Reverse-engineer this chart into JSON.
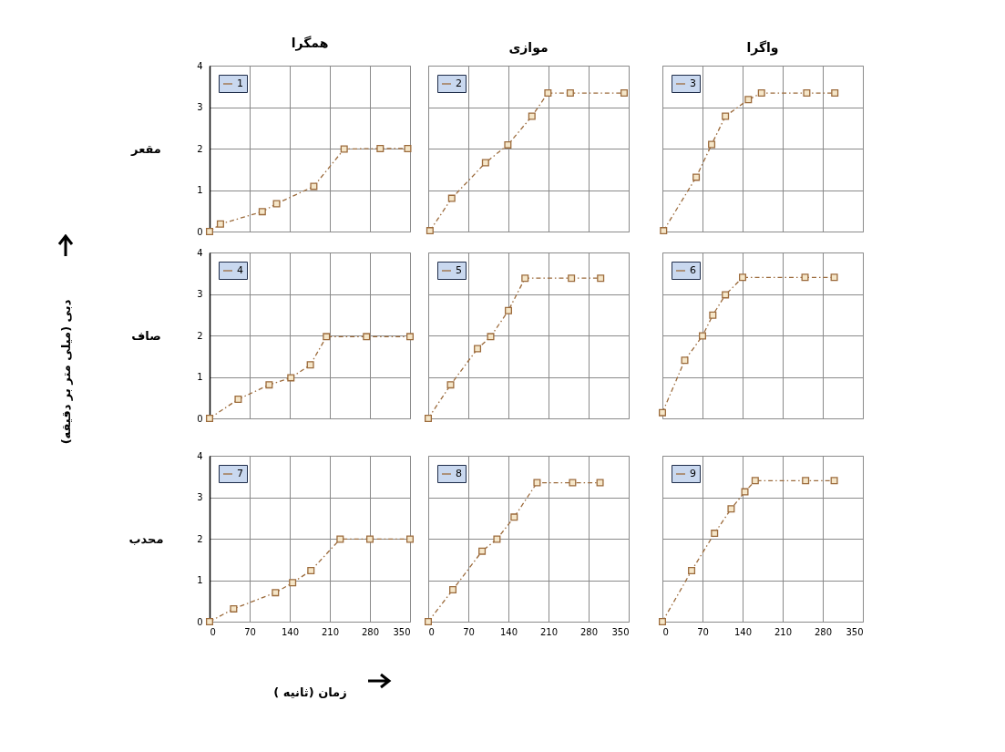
{
  "chart_data": [
    {
      "type": "line",
      "title": "همگرا",
      "ylabel": "مقعر",
      "x": [
        0,
        19,
        92,
        117,
        182,
        235,
        298,
        346
      ],
      "series": [
        {
          "name": "1",
          "color": "#9c6b3c",
          "values": [
            0,
            0.18,
            0.48,
            0.67,
            1.09,
            1.99,
            2,
            2
          ]
        }
      ],
      "xlim": [
        0,
        350
      ],
      "xticks": [
        0,
        70,
        140,
        210,
        280,
        350
      ],
      "ylim": [
        0,
        4
      ],
      "yticks": [
        0,
        1,
        2,
        3,
        4
      ],
      "grid": true,
      "legend": "top left",
      "marker": "square",
      "line_style": "dashed",
      "tick_labels": "y"
    },
    {
      "type": "line",
      "title": "موازی",
      "x": [
        3,
        41,
        100,
        139,
        181,
        209,
        248,
        342
      ],
      "series": [
        {
          "name": "2",
          "color": "#9c6b3c",
          "values": [
            0.02,
            0.8,
            1.66,
            2.09,
            2.78,
            3.34,
            3.34,
            3.34
          ]
        }
      ],
      "xlim": [
        0,
        350
      ],
      "xticks": [
        0,
        70,
        140,
        210,
        280,
        350
      ],
      "ylim": [
        0,
        4
      ],
      "yticks": [
        0,
        1,
        2,
        3,
        4
      ],
      "grid": true,
      "legend": "top left",
      "marker": "square",
      "line_style": "dashed",
      "tick_labels": false
    },
    {
      "type": "line",
      "title": "واگرا",
      "x": [
        2,
        59,
        86,
        110,
        150,
        173,
        252,
        301
      ],
      "series": [
        {
          "name": "3",
          "color": "#9c6b3c",
          "values": [
            0.02,
            1.31,
            2.1,
            2.78,
            3.18,
            3.34,
            3.34,
            3.34
          ]
        }
      ],
      "xlim": [
        0,
        350
      ],
      "xticks": [
        0,
        70,
        140,
        210,
        280,
        350
      ],
      "ylim": [
        0,
        4
      ],
      "yticks": [
        0,
        1,
        2,
        3,
        4
      ],
      "grid": true,
      "legend": "top left",
      "marker": "square",
      "line_style": "dashed",
      "tick_labels": false
    },
    {
      "type": "line",
      "ylabel": "صاف",
      "annotations": [
        "دبی (میلی متر بر دقیقه)"
      ],
      "x": [
        0,
        50,
        104,
        142,
        176,
        204,
        274,
        350
      ],
      "series": [
        {
          "name": "4",
          "color": "#9c6b3c",
          "values": [
            0,
            0.46,
            0.81,
            0.98,
            1.29,
            1.97,
            1.97,
            1.97
          ]
        }
      ],
      "xlim": [
        0,
        350
      ],
      "xticks": [
        0,
        70,
        140,
        210,
        280,
        350
      ],
      "ylim": [
        0,
        4
      ],
      "yticks": [
        0,
        1,
        2,
        3,
        4
      ],
      "grid": true,
      "legend": "top left",
      "marker": "square",
      "line_style": "dashed",
      "tick_labels": "y"
    },
    {
      "type": "line",
      "x": [
        0,
        39,
        86,
        109,
        140,
        169,
        250,
        301
      ],
      "series": [
        {
          "name": "5",
          "color": "#9c6b3c",
          "values": [
            0,
            0.81,
            1.68,
            1.97,
            2.6,
            3.38,
            3.38,
            3.38
          ]
        }
      ],
      "xlim": [
        0,
        350
      ],
      "xticks": [
        0,
        70,
        140,
        210,
        280,
        350
      ],
      "ylim": [
        0,
        4
      ],
      "yticks": [
        0,
        1,
        2,
        3,
        4
      ],
      "grid": true,
      "legend": "top left",
      "marker": "square",
      "line_style": "dashed",
      "tick_labels": false
    },
    {
      "type": "line",
      "x": [
        0,
        39,
        70,
        88,
        110,
        140,
        249,
        300
      ],
      "series": [
        {
          "name": "6",
          "color": "#9c6b3c",
          "values": [
            0.14,
            1.4,
            1.99,
            2.49,
            2.98,
            3.4,
            3.4,
            3.4
          ]
        }
      ],
      "xlim": [
        0,
        350
      ],
      "xticks": [
        0,
        70,
        140,
        210,
        280,
        350
      ],
      "ylim": [
        0,
        4
      ],
      "yticks": [
        0,
        1,
        2,
        3,
        4
      ],
      "grid": true,
      "legend": "top left",
      "marker": "square",
      "line_style": "dashed",
      "tick_labels": false
    },
    {
      "type": "line",
      "ylabel": "محدب",
      "xlabel": "زمان (ثانیه )",
      "x": [
        0,
        42,
        115,
        145,
        177,
        228,
        280,
        350
      ],
      "series": [
        {
          "name": "7",
          "color": "#9c6b3c",
          "values": [
            0,
            0.31,
            0.7,
            0.94,
            1.23,
            1.99,
            1.99,
            1.99
          ]
        }
      ],
      "xlim": [
        0,
        350
      ],
      "xticks": [
        0,
        70,
        140,
        210,
        280,
        350
      ],
      "ylim": [
        0,
        4
      ],
      "yticks": [
        0,
        1,
        2,
        3,
        4
      ],
      "grid": true,
      "legend": "top left",
      "marker": "square",
      "line_style": "dashed"
    },
    {
      "type": "line",
      "x": [
        0,
        43,
        94,
        120,
        150,
        190,
        252,
        300
      ],
      "series": [
        {
          "name": "8",
          "color": "#9c6b3c",
          "values": [
            0,
            0.77,
            1.7,
            1.99,
            2.52,
            3.35,
            3.35,
            3.35
          ]
        }
      ],
      "xlim": [
        0,
        350
      ],
      "xticks": [
        0,
        70,
        140,
        210,
        280,
        350
      ],
      "ylim": [
        0,
        4
      ],
      "yticks": [
        0,
        1,
        2,
        3,
        4
      ],
      "grid": true,
      "legend": "top left",
      "marker": "square",
      "line_style": "dashed",
      "tick_labels": "x"
    },
    {
      "type": "line",
      "x": [
        0,
        51,
        91,
        120,
        144,
        162,
        250,
        300
      ],
      "series": [
        {
          "name": "9",
          "color": "#9c6b3c",
          "values": [
            0,
            1.23,
            2.13,
            2.72,
            3.13,
            3.4,
            3.4,
            3.4
          ]
        }
      ],
      "xlim": [
        0,
        350
      ],
      "xticks": [
        0,
        70,
        140,
        210,
        280,
        350
      ],
      "ylim": [
        0,
        4
      ],
      "yticks": [
        0,
        1,
        2,
        3,
        4
      ],
      "grid": true,
      "legend": "top left",
      "marker": "square",
      "line_style": "dashed",
      "tick_labels": "x"
    }
  ]
}
